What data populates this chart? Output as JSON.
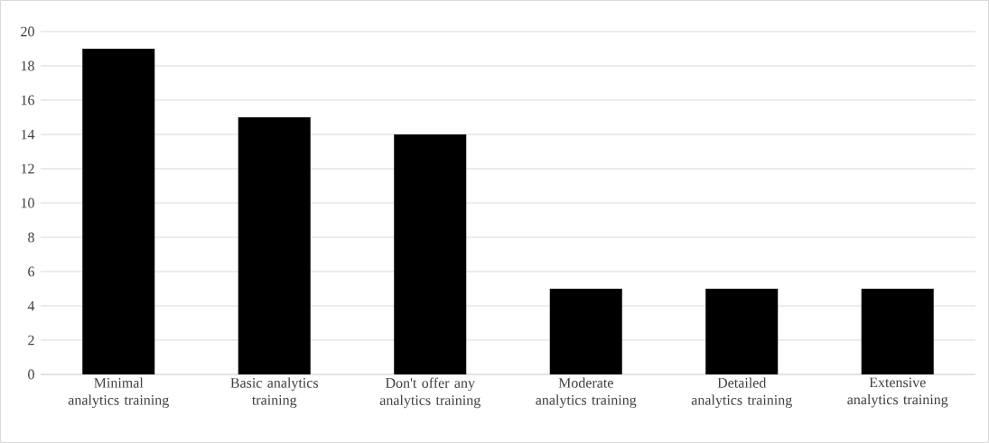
{
  "chart_data": {
    "type": "bar",
    "categories": [
      "Minimal analytics training",
      "Basic analytics training",
      "Don't offer any analytics training",
      "Moderate analytics training",
      "Detailed analytics training",
      "Extensive analytics training"
    ],
    "values": [
      19,
      15,
      14,
      5,
      5,
      5
    ],
    "color": "#000000",
    "ylim": [
      0,
      20
    ],
    "yticks": [
      0,
      2,
      4,
      6,
      8,
      10,
      12,
      14,
      16,
      18,
      20
    ],
    "grid": "y"
  }
}
